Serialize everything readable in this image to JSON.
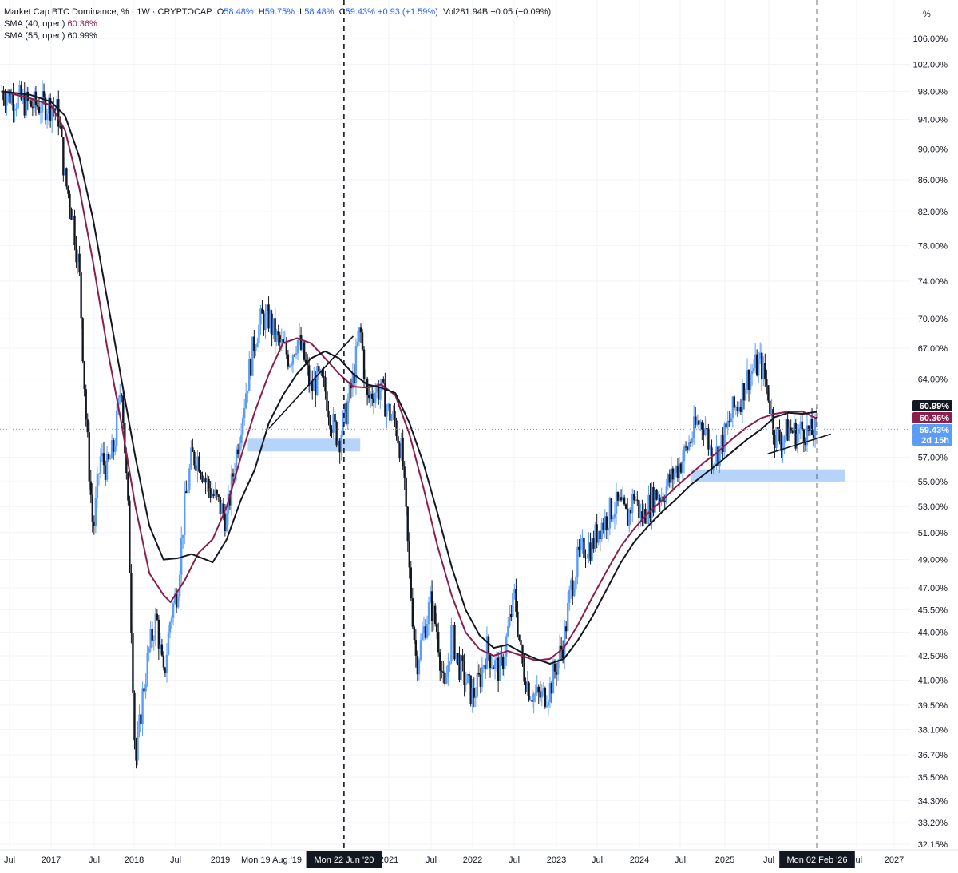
{
  "header": {
    "symbol": "Market Cap BTC Dominance, % · 1W · CRYPTOCAP",
    "o_label": "O",
    "o_value": "58.48%",
    "h_label": "H",
    "h_value": "59.75%",
    "l_label": "L",
    "l_value": "58.48%",
    "c_label": "C",
    "c_value": "59.43%",
    "change": "+0.93 (+1.59%)",
    "vol_label": "Vol",
    "vol_value": "281.94B",
    "vol_change": "−0.05 (−0.09%)",
    "sma40_label": "SMA (40, open)",
    "sma40_value": "60.36%",
    "sma55_label": "SMA (55, open)",
    "sma55_value": "60.99%"
  },
  "axis_unit": "%",
  "price_badges": [
    {
      "text": "60.99%",
      "color": "#131722"
    },
    {
      "text": "60.36%",
      "color": "#8b1e4d"
    },
    {
      "text": "59.43%",
      "color": "#5b9cf6"
    },
    {
      "text": "2d 15h",
      "color": "#5b9cf6"
    }
  ],
  "time_badges": [
    "Mon 22 Jun '20",
    "Mon 02 Feb '26"
  ],
  "colors": {
    "up": "#5b9cf6",
    "down": "#131722",
    "sma40": "#8b1e4d",
    "sma55": "#131722",
    "zone": "#a9cdf9",
    "grid": "#f0f3fa",
    "axis_text": "#131722"
  },
  "chart_data": {
    "type": "candlestick",
    "title": "Market Cap BTC Dominance, %",
    "interval": "1W",
    "scale": "log",
    "y_ticks": [
      "106.00%",
      "102.00%",
      "98.00%",
      "94.00%",
      "90.00%",
      "86.00%",
      "82.00%",
      "78.00%",
      "74.00%",
      "70.00%",
      "67.00%",
      "64.00%",
      "57.00%",
      "55.00%",
      "53.00%",
      "51.00%",
      "49.00%",
      "47.00%",
      "45.50%",
      "44.00%",
      "42.50%",
      "41.00%",
      "39.50%",
      "38.10%",
      "36.70%",
      "35.50%",
      "34.30%",
      "33.20%",
      "32.15%"
    ],
    "x_ticks": [
      "Jul",
      "2017",
      "Jul",
      "2018",
      "Jul",
      "2019",
      "Mon 19 Aug '19",
      "2021",
      "Jul",
      "2022",
      "Jul",
      "2023",
      "Jul",
      "2024",
      "Jul",
      "2025",
      "Jul",
      "Jul",
      "2027"
    ],
    "x_range": [
      "2016-06",
      "2027-04"
    ],
    "series": [
      {
        "name": "Market Cap BTC Dominance",
        "trend": [
          [
            "2016-06",
            98.0
          ],
          [
            "2016-10",
            96.0
          ],
          [
            "2017-01",
            96.0
          ],
          [
            "2017-02",
            95.0
          ],
          [
            "2017-03",
            86.0
          ],
          [
            "2017-04",
            82.0
          ],
          [
            "2017-05",
            75.0
          ],
          [
            "2017-06",
            60.0
          ],
          [
            "2017-07",
            51.0
          ],
          [
            "2017-08",
            57.0
          ],
          [
            "2017-09",
            56.0
          ],
          [
            "2017-10",
            58.0
          ],
          [
            "2017-11",
            64.0
          ],
          [
            "2017-12",
            52.0
          ],
          [
            "2018-01",
            36.0
          ],
          [
            "2018-02",
            40.0
          ],
          [
            "2018-03",
            43.0
          ],
          [
            "2018-04",
            45.0
          ],
          [
            "2018-05",
            41.0
          ],
          [
            "2018-06",
            45.0
          ],
          [
            "2018-07",
            47.0
          ],
          [
            "2018-08",
            53.0
          ],
          [
            "2018-09",
            57.0
          ],
          [
            "2018-10",
            57.0
          ],
          [
            "2018-11",
            55.0
          ],
          [
            "2018-12",
            54.0
          ],
          [
            "2019-01",
            53.0
          ],
          [
            "2019-02",
            52.0
          ],
          [
            "2019-03",
            56.0
          ],
          [
            "2019-04",
            60.0
          ],
          [
            "2019-05",
            64.0
          ],
          [
            "2019-06",
            68.0
          ],
          [
            "2019-07",
            70.0
          ],
          [
            "2019-08",
            70.0
          ],
          [
            "2019-09",
            68.0
          ],
          [
            "2019-10",
            67.0
          ],
          [
            "2019-11",
            66.0
          ],
          [
            "2019-12",
            68.0
          ],
          [
            "2020-01",
            66.0
          ],
          [
            "2020-02",
            63.0
          ],
          [
            "2020-03",
            64.0
          ],
          [
            "2020-04",
            63.0
          ],
          [
            "2020-05",
            60.0
          ],
          [
            "2020-06",
            58.5
          ],
          [
            "2020-07",
            61.0
          ],
          [
            "2020-08",
            64.0
          ],
          [
            "2020-09",
            69.0
          ],
          [
            "2020-10",
            62.0
          ],
          [
            "2020-11",
            63.0
          ],
          [
            "2020-12",
            63.0
          ],
          [
            "2021-01",
            61.0
          ],
          [
            "2021-02",
            60.0
          ],
          [
            "2021-03",
            57.0
          ],
          [
            "2021-04",
            48.0
          ],
          [
            "2021-05",
            42.0
          ],
          [
            "2021-06",
            44.0
          ],
          [
            "2021-07",
            46.0
          ],
          [
            "2021-08",
            44.0
          ],
          [
            "2021-09",
            40.0
          ],
          [
            "2021-10",
            44.0
          ],
          [
            "2021-11",
            42.0
          ],
          [
            "2021-12",
            41.0
          ],
          [
            "2022-01",
            40.0
          ],
          [
            "2022-02",
            41.0
          ],
          [
            "2022-03",
            43.0
          ],
          [
            "2022-04",
            42.0
          ],
          [
            "2022-05",
            41.5
          ],
          [
            "2022-06",
            44.0
          ],
          [
            "2022-07",
            46.5
          ],
          [
            "2022-08",
            42.0
          ],
          [
            "2022-09",
            40.5
          ],
          [
            "2022-10",
            40.0
          ],
          [
            "2022-11",
            40.0
          ],
          [
            "2022-12",
            40.5
          ],
          [
            "2023-01",
            42.0
          ],
          [
            "2023-02",
            43.5
          ],
          [
            "2023-03",
            47.0
          ],
          [
            "2023-04",
            49.0
          ],
          [
            "2023-05",
            50.0
          ],
          [
            "2023-06",
            50.0
          ],
          [
            "2023-07",
            51.5
          ],
          [
            "2023-08",
            52.0
          ],
          [
            "2023-09",
            53.0
          ],
          [
            "2023-10",
            53.0
          ],
          [
            "2023-11",
            52.0
          ],
          [
            "2023-12",
            54.0
          ],
          [
            "2024-01",
            52.0
          ],
          [
            "2024-02",
            53.0
          ],
          [
            "2024-03",
            54.0
          ],
          [
            "2024-04",
            54.0
          ],
          [
            "2024-05",
            55.0
          ],
          [
            "2024-06",
            56.0
          ],
          [
            "2024-07",
            57.0
          ],
          [
            "2024-08",
            58.5
          ],
          [
            "2024-09",
            60.0
          ],
          [
            "2024-10",
            60.0
          ],
          [
            "2024-11",
            57.0
          ],
          [
            "2024-12",
            57.5
          ],
          [
            "2025-01",
            59.0
          ],
          [
            "2025-02",
            61.0
          ],
          [
            "2025-03",
            62.0
          ],
          [
            "2025-04",
            64.0
          ],
          [
            "2025-05",
            65.0
          ],
          [
            "2025-06",
            65.5
          ],
          [
            "2025-07",
            63.0
          ],
          [
            "2025-08",
            59.0
          ],
          [
            "2025-09",
            58.5
          ],
          [
            "2025-10",
            59.5
          ],
          [
            "2025-11",
            59.0
          ],
          [
            "2025-12",
            59.5
          ],
          [
            "2026-01",
            59.0
          ],
          [
            "2026-02",
            59.43
          ]
        ]
      },
      {
        "name": "SMA (40, open)",
        "points": [
          [
            "2016-06",
            98.0
          ],
          [
            "2016-10",
            97.0
          ],
          [
            "2017-01",
            96.0
          ],
          [
            "2017-03",
            92.5
          ],
          [
            "2017-05",
            85.0
          ],
          [
            "2017-07",
            76.0
          ],
          [
            "2017-09",
            67.0
          ],
          [
            "2017-11",
            60.0
          ],
          [
            "2018-01",
            53.0
          ],
          [
            "2018-03",
            48.0
          ],
          [
            "2018-05",
            46.5
          ],
          [
            "2018-06",
            46.0
          ],
          [
            "2018-08",
            47.5
          ],
          [
            "2018-10",
            49.5
          ],
          [
            "2018-12",
            50.5
          ],
          [
            "2019-02",
            53.0
          ],
          [
            "2019-04",
            57.0
          ],
          [
            "2019-06",
            61.0
          ],
          [
            "2019-08",
            64.5
          ],
          [
            "2019-10",
            67.5
          ],
          [
            "2019-12",
            68.0
          ],
          [
            "2020-02",
            67.5
          ],
          [
            "2020-04",
            66.0
          ],
          [
            "2020-06",
            64.5
          ],
          [
            "2020-08",
            63.3
          ],
          [
            "2020-10",
            63.2
          ],
          [
            "2020-12",
            63.5
          ],
          [
            "2021-02",
            62.5
          ],
          [
            "2021-04",
            59.0
          ],
          [
            "2021-06",
            54.5
          ],
          [
            "2021-08",
            50.0
          ],
          [
            "2021-10",
            46.5
          ],
          [
            "2021-12",
            44.0
          ],
          [
            "2022-02",
            42.9
          ],
          [
            "2022-04",
            42.5
          ],
          [
            "2022-06",
            42.8
          ],
          [
            "2022-08",
            42.5
          ],
          [
            "2022-10",
            42.2
          ],
          [
            "2022-12",
            42.3
          ],
          [
            "2023-02",
            43.0
          ],
          [
            "2023-04",
            44.5
          ],
          [
            "2023-06",
            46.3
          ],
          [
            "2023-08",
            48.1
          ],
          [
            "2023-10",
            49.9
          ],
          [
            "2023-12",
            51.3
          ],
          [
            "2024-02",
            52.5
          ],
          [
            "2024-04",
            53.5
          ],
          [
            "2024-06",
            54.6
          ],
          [
            "2024-08",
            55.6
          ],
          [
            "2024-10",
            56.6
          ],
          [
            "2024-12",
            57.5
          ],
          [
            "2025-02",
            58.6
          ],
          [
            "2025-04",
            59.6
          ],
          [
            "2025-06",
            60.4
          ],
          [
            "2025-08",
            60.8
          ],
          [
            "2025-10",
            61.0
          ],
          [
            "2025-12",
            61.0
          ],
          [
            "2026-02",
            60.36
          ]
        ]
      },
      {
        "name": "SMA (55, open)",
        "points": [
          [
            "2016-06",
            98.0
          ],
          [
            "2016-10",
            97.5
          ],
          [
            "2017-01",
            96.5
          ],
          [
            "2017-03",
            94.5
          ],
          [
            "2017-05",
            89.0
          ],
          [
            "2017-07",
            81.0
          ],
          [
            "2017-09",
            72.0
          ],
          [
            "2017-11",
            64.0
          ],
          [
            "2018-01",
            57.0
          ],
          [
            "2018-03",
            51.5
          ],
          [
            "2018-05",
            49.0
          ],
          [
            "2018-07",
            49.1
          ],
          [
            "2018-09",
            49.4
          ],
          [
            "2018-11",
            49.0
          ],
          [
            "2018-12",
            48.8
          ],
          [
            "2019-02",
            50.5
          ],
          [
            "2019-04",
            53.5
          ],
          [
            "2019-06",
            56.0
          ],
          [
            "2019-08",
            60.0
          ],
          [
            "2019-10",
            62.5
          ],
          [
            "2019-12",
            64.5
          ],
          [
            "2020-02",
            66.0
          ],
          [
            "2020-04",
            66.7
          ],
          [
            "2020-06",
            66.0
          ],
          [
            "2020-08",
            64.5
          ],
          [
            "2020-10",
            63.5
          ],
          [
            "2020-12",
            63.2
          ],
          [
            "2021-02",
            62.7
          ],
          [
            "2021-04",
            60.0
          ],
          [
            "2021-06",
            56.5
          ],
          [
            "2021-08",
            52.5
          ],
          [
            "2021-10",
            48.5
          ],
          [
            "2021-12",
            45.5
          ],
          [
            "2022-02",
            43.8
          ],
          [
            "2022-04",
            43.0
          ],
          [
            "2022-06",
            43.2
          ],
          [
            "2022-08",
            42.7
          ],
          [
            "2022-10",
            42.3
          ],
          [
            "2022-12",
            42.0
          ],
          [
            "2023-02",
            42.3
          ],
          [
            "2023-04",
            43.5
          ],
          [
            "2023-06",
            45.0
          ],
          [
            "2023-08",
            46.8
          ],
          [
            "2023-10",
            48.7
          ],
          [
            "2023-12",
            50.3
          ],
          [
            "2024-02",
            51.5
          ],
          [
            "2024-04",
            52.6
          ],
          [
            "2024-06",
            53.6
          ],
          [
            "2024-08",
            54.7
          ],
          [
            "2024-10",
            55.6
          ],
          [
            "2024-12",
            56.5
          ],
          [
            "2025-02",
            57.5
          ],
          [
            "2025-04",
            58.5
          ],
          [
            "2025-06",
            59.4
          ],
          [
            "2025-08",
            60.5
          ],
          [
            "2025-10",
            60.9
          ],
          [
            "2025-12",
            60.8
          ],
          [
            "2026-02",
            60.99
          ]
        ]
      }
    ],
    "zones": [
      {
        "from": "2019-05",
        "to": "2020-09",
        "low": 57.5,
        "high": 58.6
      },
      {
        "from": "2024-08",
        "to": "2026-06",
        "low": 55.0,
        "high": 56.0
      }
    ],
    "trendlines": [
      {
        "from": [
          "2019-08",
          59.5
        ],
        "to": [
          "2020-08",
          68.2
        ]
      },
      {
        "from": [
          "2025-07",
          57.3
        ],
        "to": [
          "2026-04",
          59.0
        ]
      }
    ],
    "vlines": [
      "2020-06-22",
      "2026-02-02"
    ],
    "last_close": 59.43
  }
}
